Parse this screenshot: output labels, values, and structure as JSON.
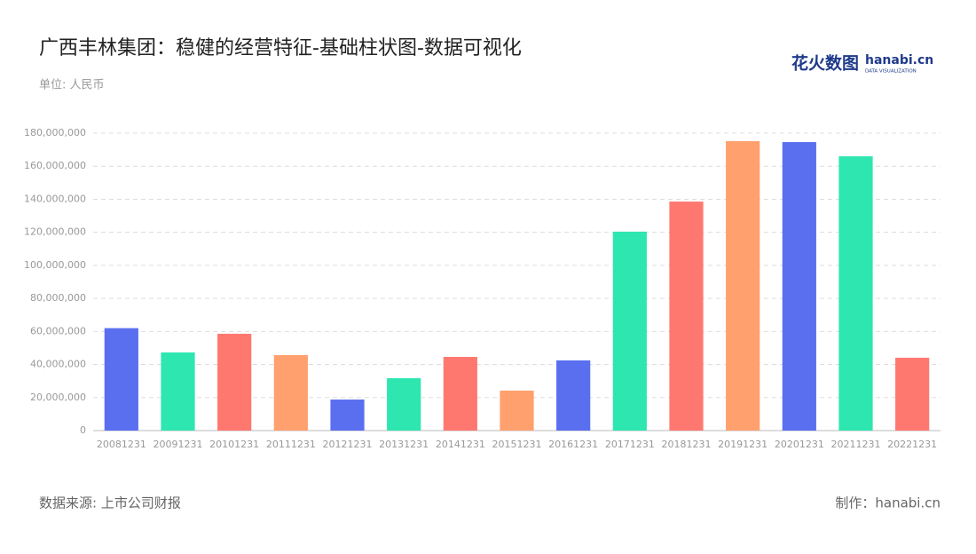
{
  "chart_data": {
    "type": "bar",
    "title": "广西丰林集团：稳健的经营特征-基础柱状图-数据可视化",
    "subtitle": "单位: 人民币",
    "source": "数据来源: 上市公司财报",
    "credit": "制作：hanabi.cn",
    "logo": {
      "brand": "花火数图",
      "site": "hanabi.cn",
      "tagline": "DATA VISUALIZATION"
    },
    "categories": [
      "20081231",
      "20091231",
      "20101231",
      "20111231",
      "20121231",
      "20131231",
      "20141231",
      "20151231",
      "20161231",
      "20171231",
      "20181231",
      "20191231",
      "20201231",
      "20211231",
      "20221231"
    ],
    "values": [
      62000000,
      47300000,
      58600000,
      45700000,
      18800000,
      31700000,
      44600000,
      24200000,
      42500000,
      120400000,
      138600000,
      175200000,
      174600000,
      166000000,
      44100000
    ],
    "colors": [
      "#5a6ff0",
      "#2ee6b0",
      "#ff7870",
      "#ffa06e",
      "#5a6ff0",
      "#2ee6b0",
      "#ff7870",
      "#ffa06e",
      "#5a6ff0",
      "#2ee6b0",
      "#ff7870",
      "#ffa06e",
      "#5a6ff0",
      "#2ee6b0",
      "#ff7870"
    ],
    "ylim": [
      0,
      180000000
    ],
    "yticks": [
      0,
      {
        "value": 20000000,
        "label": "20,000,000"
      },
      {
        "value": 40000000,
        "label": "40,000,000"
      },
      {
        "value": 60000000,
        "label": "60,000,000"
      },
      {
        "value": 80000000,
        "label": "80,000,000"
      },
      {
        "value": 100000000,
        "label": "100,000,000"
      },
      {
        "value": 120000000,
        "label": "120,000,000"
      },
      {
        "value": 140000000,
        "label": "140,000,000"
      },
      {
        "value": 160000000,
        "label": "160,000,000"
      },
      {
        "value": 180000000,
        "label": "180,000,000"
      }
    ],
    "grid": true
  }
}
